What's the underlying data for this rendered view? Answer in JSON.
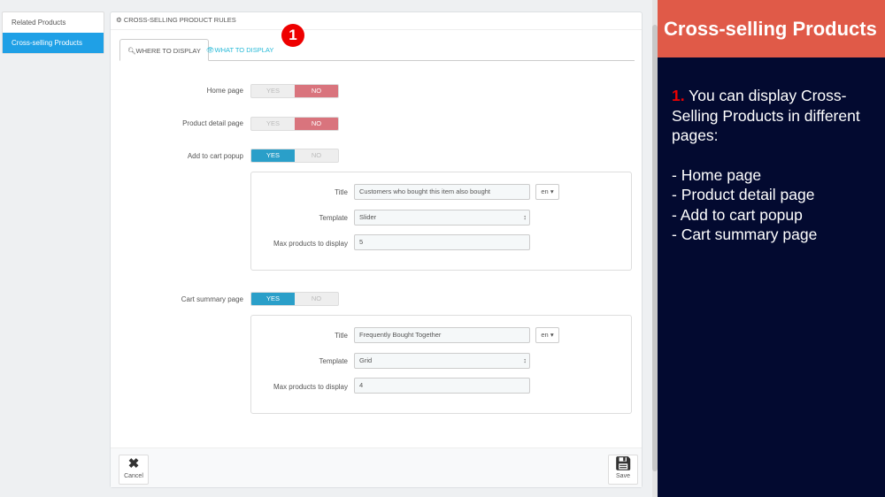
{
  "sidebar": {
    "items": [
      {
        "label": "Related Products"
      },
      {
        "label": "Cross-selling Products"
      }
    ]
  },
  "panel": {
    "title": "Cross-selling Product Rules",
    "tabs": [
      {
        "label": "Where to display"
      },
      {
        "label": "What to display"
      }
    ],
    "step_badge": "1"
  },
  "toggles": {
    "yes": "YES",
    "no": "NO"
  },
  "rows": {
    "home": {
      "label": "Home page",
      "value": "NO"
    },
    "detail": {
      "label": "Product detail page",
      "value": "NO"
    },
    "popup": {
      "label": "Add to cart popup",
      "value": "YES"
    },
    "cart": {
      "label": "Cart summary page",
      "value": "YES"
    }
  },
  "popup_settings": {
    "title_label": "Title",
    "title_value": "Customers who bought this item also bought",
    "lang": "en",
    "template_label": "Template",
    "template_value": "Slider",
    "max_label": "Max products to display",
    "max_value": "5"
  },
  "cart_settings": {
    "title_label": "Title",
    "title_value": "Frequently Bought Together",
    "lang": "en",
    "template_label": "Template",
    "template_value": "Grid",
    "max_label": "Max products to display",
    "max_value": "4"
  },
  "footer": {
    "cancel": "Cancel",
    "save": "Save"
  },
  "info": {
    "heading": "Cross-selling Products",
    "number": "1.",
    "text": "You can display Cross-Selling Products in different pages:",
    "bullets": [
      "- Home page",
      "- Product detail page",
      "- Add to cart popup",
      "- Cart summary page"
    ]
  },
  "colors": {
    "accent": "#1fa0e6",
    "yes": "#2a9fc9",
    "no": "#d9747d",
    "header": "#e05a48",
    "info_bg": "#030a30"
  }
}
